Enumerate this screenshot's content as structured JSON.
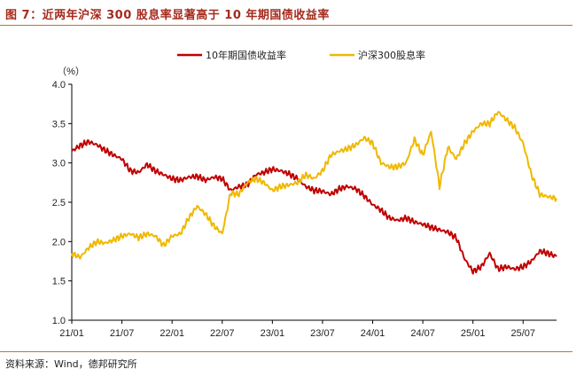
{
  "header": {
    "title": "图 7：近两年沪深 300 股息率显著高于 10 年期国债收益率"
  },
  "footer": {
    "source": "资料来源：Wind，德邦研究所"
  },
  "chart_data": {
    "type": "line",
    "title": "图 7：近两年沪深 300 股息率显著高于 10 年期国债收益率",
    "y_unit": "（%）",
    "ylim": [
      1.0,
      4.0
    ],
    "y_ticks": [
      "1.0",
      "1.5",
      "2.0",
      "2.5",
      "3.0",
      "3.5",
      "4.0"
    ],
    "x_ticks": [
      "21/01",
      "21/07",
      "22/01",
      "22/07",
      "23/01",
      "23/07",
      "24/01",
      "24/07",
      "25/01",
      "25/07"
    ],
    "xlim": [
      "2021-01",
      "2025-11"
    ],
    "legend_position": "top",
    "grid": false,
    "series": [
      {
        "name": "10年期国债收益率",
        "color": "#c00000",
        "points": [
          [
            "2021-01",
            3.15
          ],
          [
            "2021-02",
            3.22
          ],
          [
            "2021-03",
            3.27
          ],
          [
            "2021-04",
            3.23
          ],
          [
            "2021-05",
            3.16
          ],
          [
            "2021-06",
            3.1
          ],
          [
            "2021-07",
            3.05
          ],
          [
            "2021-08",
            2.9
          ],
          [
            "2021-09",
            2.88
          ],
          [
            "2021-10",
            2.98
          ],
          [
            "2021-11",
            2.9
          ],
          [
            "2021-12",
            2.85
          ],
          [
            "2022-01",
            2.8
          ],
          [
            "2022-02",
            2.78
          ],
          [
            "2022-03",
            2.82
          ],
          [
            "2022-04",
            2.83
          ],
          [
            "2022-05",
            2.78
          ],
          [
            "2022-06",
            2.82
          ],
          [
            "2022-07",
            2.8
          ],
          [
            "2022-08",
            2.65
          ],
          [
            "2022-09",
            2.7
          ],
          [
            "2022-10",
            2.72
          ],
          [
            "2022-11",
            2.85
          ],
          [
            "2022-12",
            2.88
          ],
          [
            "2023-01",
            2.92
          ],
          [
            "2023-02",
            2.9
          ],
          [
            "2023-03",
            2.86
          ],
          [
            "2023-04",
            2.8
          ],
          [
            "2023-05",
            2.7
          ],
          [
            "2023-06",
            2.65
          ],
          [
            "2023-07",
            2.64
          ],
          [
            "2023-08",
            2.6
          ],
          [
            "2023-09",
            2.67
          ],
          [
            "2023-10",
            2.7
          ],
          [
            "2023-11",
            2.67
          ],
          [
            "2023-12",
            2.58
          ],
          [
            "2024-01",
            2.47
          ],
          [
            "2024-02",
            2.4
          ],
          [
            "2024-03",
            2.3
          ],
          [
            "2024-04",
            2.27
          ],
          [
            "2024-05",
            2.3
          ],
          [
            "2024-06",
            2.25
          ],
          [
            "2024-07",
            2.22
          ],
          [
            "2024-08",
            2.18
          ],
          [
            "2024-09",
            2.15
          ],
          [
            "2024-10",
            2.12
          ],
          [
            "2024-11",
            2.05
          ],
          [
            "2024-12",
            1.78
          ],
          [
            "2025-01",
            1.62
          ],
          [
            "2025-02",
            1.68
          ],
          [
            "2025-03",
            1.85
          ],
          [
            "2025-04",
            1.65
          ],
          [
            "2025-05",
            1.68
          ],
          [
            "2025-06",
            1.65
          ],
          [
            "2025-07",
            1.68
          ],
          [
            "2025-08",
            1.75
          ],
          [
            "2025-09",
            1.88
          ],
          [
            "2025-10",
            1.85
          ],
          [
            "2025-11",
            1.81
          ]
        ]
      },
      {
        "name": "沪深300股息率",
        "color": "#f0b800",
        "points": [
          [
            "2021-01",
            1.85
          ],
          [
            "2021-02",
            1.8
          ],
          [
            "2021-03",
            1.92
          ],
          [
            "2021-04",
            2.0
          ],
          [
            "2021-05",
            1.98
          ],
          [
            "2021-06",
            2.02
          ],
          [
            "2021-07",
            2.07
          ],
          [
            "2021-08",
            2.1
          ],
          [
            "2021-09",
            2.05
          ],
          [
            "2021-10",
            2.1
          ],
          [
            "2021-11",
            2.07
          ],
          [
            "2021-12",
            1.95
          ],
          [
            "2022-01",
            2.07
          ],
          [
            "2022-02",
            2.1
          ],
          [
            "2022-03",
            2.3
          ],
          [
            "2022-04",
            2.45
          ],
          [
            "2022-05",
            2.35
          ],
          [
            "2022-06",
            2.2
          ],
          [
            "2022-07",
            2.1
          ],
          [
            "2022-08",
            2.62
          ],
          [
            "2022-09",
            2.6
          ],
          [
            "2022-10",
            2.75
          ],
          [
            "2022-11",
            2.8
          ],
          [
            "2022-12",
            2.75
          ],
          [
            "2023-01",
            2.65
          ],
          [
            "2023-02",
            2.7
          ],
          [
            "2023-03",
            2.72
          ],
          [
            "2023-04",
            2.75
          ],
          [
            "2023-05",
            2.85
          ],
          [
            "2023-06",
            2.8
          ],
          [
            "2023-07",
            2.9
          ],
          [
            "2023-08",
            3.1
          ],
          [
            "2023-09",
            3.15
          ],
          [
            "2023-10",
            3.18
          ],
          [
            "2023-11",
            3.23
          ],
          [
            "2023-12",
            3.32
          ],
          [
            "2024-01",
            3.25
          ],
          [
            "2024-02",
            3.0
          ],
          [
            "2024-03",
            2.95
          ],
          [
            "2024-04",
            2.95
          ],
          [
            "2024-05",
            3.0
          ],
          [
            "2024-06",
            3.3
          ],
          [
            "2024-07",
            3.1
          ],
          [
            "2024-08",
            3.4
          ],
          [
            "2024-09",
            2.7
          ],
          [
            "2024-10",
            3.2
          ],
          [
            "2024-11",
            3.05
          ],
          [
            "2024-12",
            3.25
          ],
          [
            "2025-01",
            3.4
          ],
          [
            "2025-02",
            3.5
          ],
          [
            "2025-03",
            3.5
          ],
          [
            "2025-04",
            3.65
          ],
          [
            "2025-05",
            3.55
          ],
          [
            "2025-06",
            3.45
          ],
          [
            "2025-07",
            3.25
          ],
          [
            "2025-08",
            2.85
          ],
          [
            "2025-09",
            2.6
          ],
          [
            "2025-10",
            2.57
          ],
          [
            "2025-11",
            2.55
          ]
        ]
      }
    ]
  }
}
